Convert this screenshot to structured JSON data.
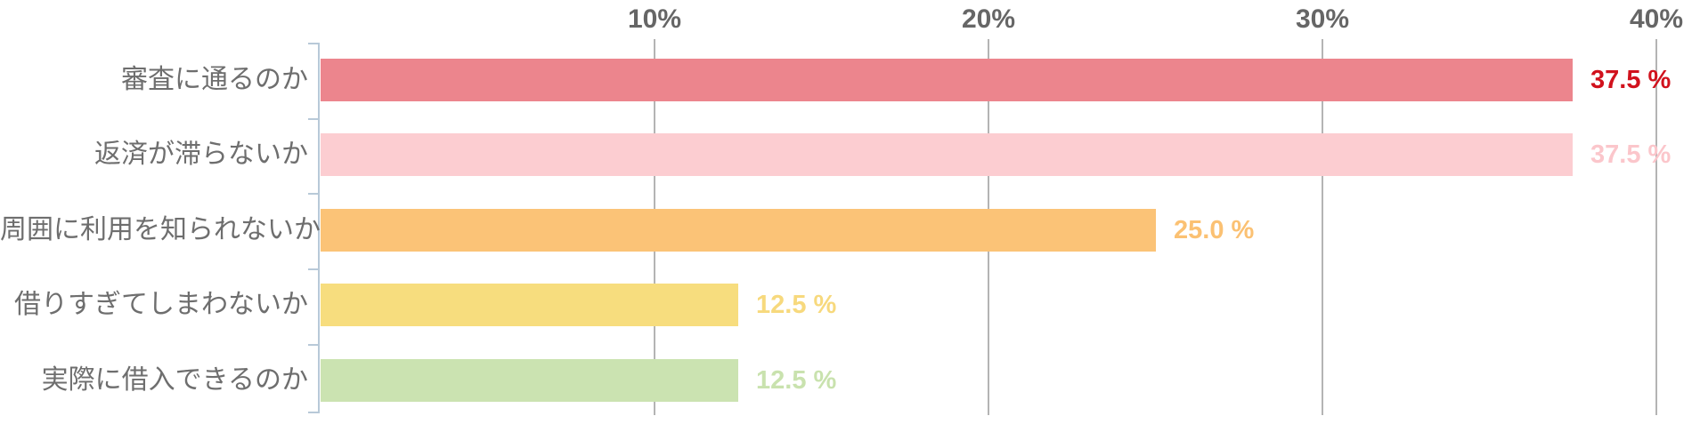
{
  "chart_data": {
    "type": "bar",
    "orientation": "horizontal",
    "title": "",
    "categories": [
      "審査に通るのか",
      "返済が滞らないか",
      "周囲に利用を知られないか",
      "借りすぎてしまわないか",
      "実際に借入できるのか"
    ],
    "values": [
      37.5,
      37.5,
      25.0,
      12.5,
      12.5
    ],
    "value_labels": [
      "37.5 %",
      "37.5 %",
      "25.0 %",
      "12.5 %",
      "12.5 %"
    ],
    "bar_colors": [
      "#ec858d",
      "#fccdd1",
      "#fbc377",
      "#f7dd7e",
      "#cbe3b1"
    ],
    "value_label_colors": [
      "#d1121d",
      "#fbc6cb",
      "#fbc173",
      "#f7d97d",
      "#c9e2ae"
    ],
    "xlim": [
      0,
      40
    ],
    "x_ticks": [
      10,
      20,
      30,
      40
    ],
    "x_tick_labels": [
      "10%",
      "20%",
      "30%",
      "40%"
    ],
    "grid": true,
    "legend": false,
    "axis_position": "top"
  },
  "colors": {
    "gridline": "#b4b4b4",
    "y_axis": "#b8c9d8",
    "tick_label": "#666666",
    "category_label": "#6e6e6e",
    "background": "#ffffff"
  }
}
